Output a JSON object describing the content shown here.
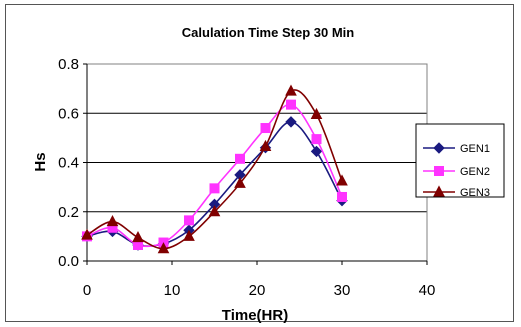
{
  "chart_data": {
    "type": "line",
    "title": "Calulation Time Step 30 Min",
    "xlabel": "Time(HR)",
    "ylabel": "Hs",
    "xlim": [
      0,
      40
    ],
    "ylim": [
      0.0,
      0.8
    ],
    "x_ticks": [
      "0",
      "10",
      "20",
      "30",
      "40"
    ],
    "y_ticks": [
      "0.0",
      "0.2",
      "0.4",
      "0.6",
      "0.8"
    ],
    "grid": "horizontal",
    "smoothed": true,
    "legend_position": "right",
    "x": [
      0,
      3,
      6,
      9,
      12,
      15,
      18,
      21,
      24,
      27,
      30
    ],
    "series": [
      {
        "name": "GEN1",
        "color": "#1a1a80",
        "marker": "diamond",
        "values": [
          0.1,
          0.12,
          0.065,
          0.07,
          0.125,
          0.23,
          0.35,
          0.46,
          0.565,
          0.445,
          0.245
        ]
      },
      {
        "name": "GEN2",
        "color": "#ff33ff",
        "marker": "square",
        "values": [
          0.1,
          0.135,
          0.065,
          0.075,
          0.165,
          0.295,
          0.415,
          0.54,
          0.635,
          0.495,
          0.26
        ]
      },
      {
        "name": "GEN3",
        "color": "#800000",
        "marker": "triangle",
        "values": [
          0.105,
          0.16,
          0.095,
          0.05,
          0.1,
          0.2,
          0.315,
          0.465,
          0.69,
          0.595,
          0.325
        ]
      }
    ]
  }
}
